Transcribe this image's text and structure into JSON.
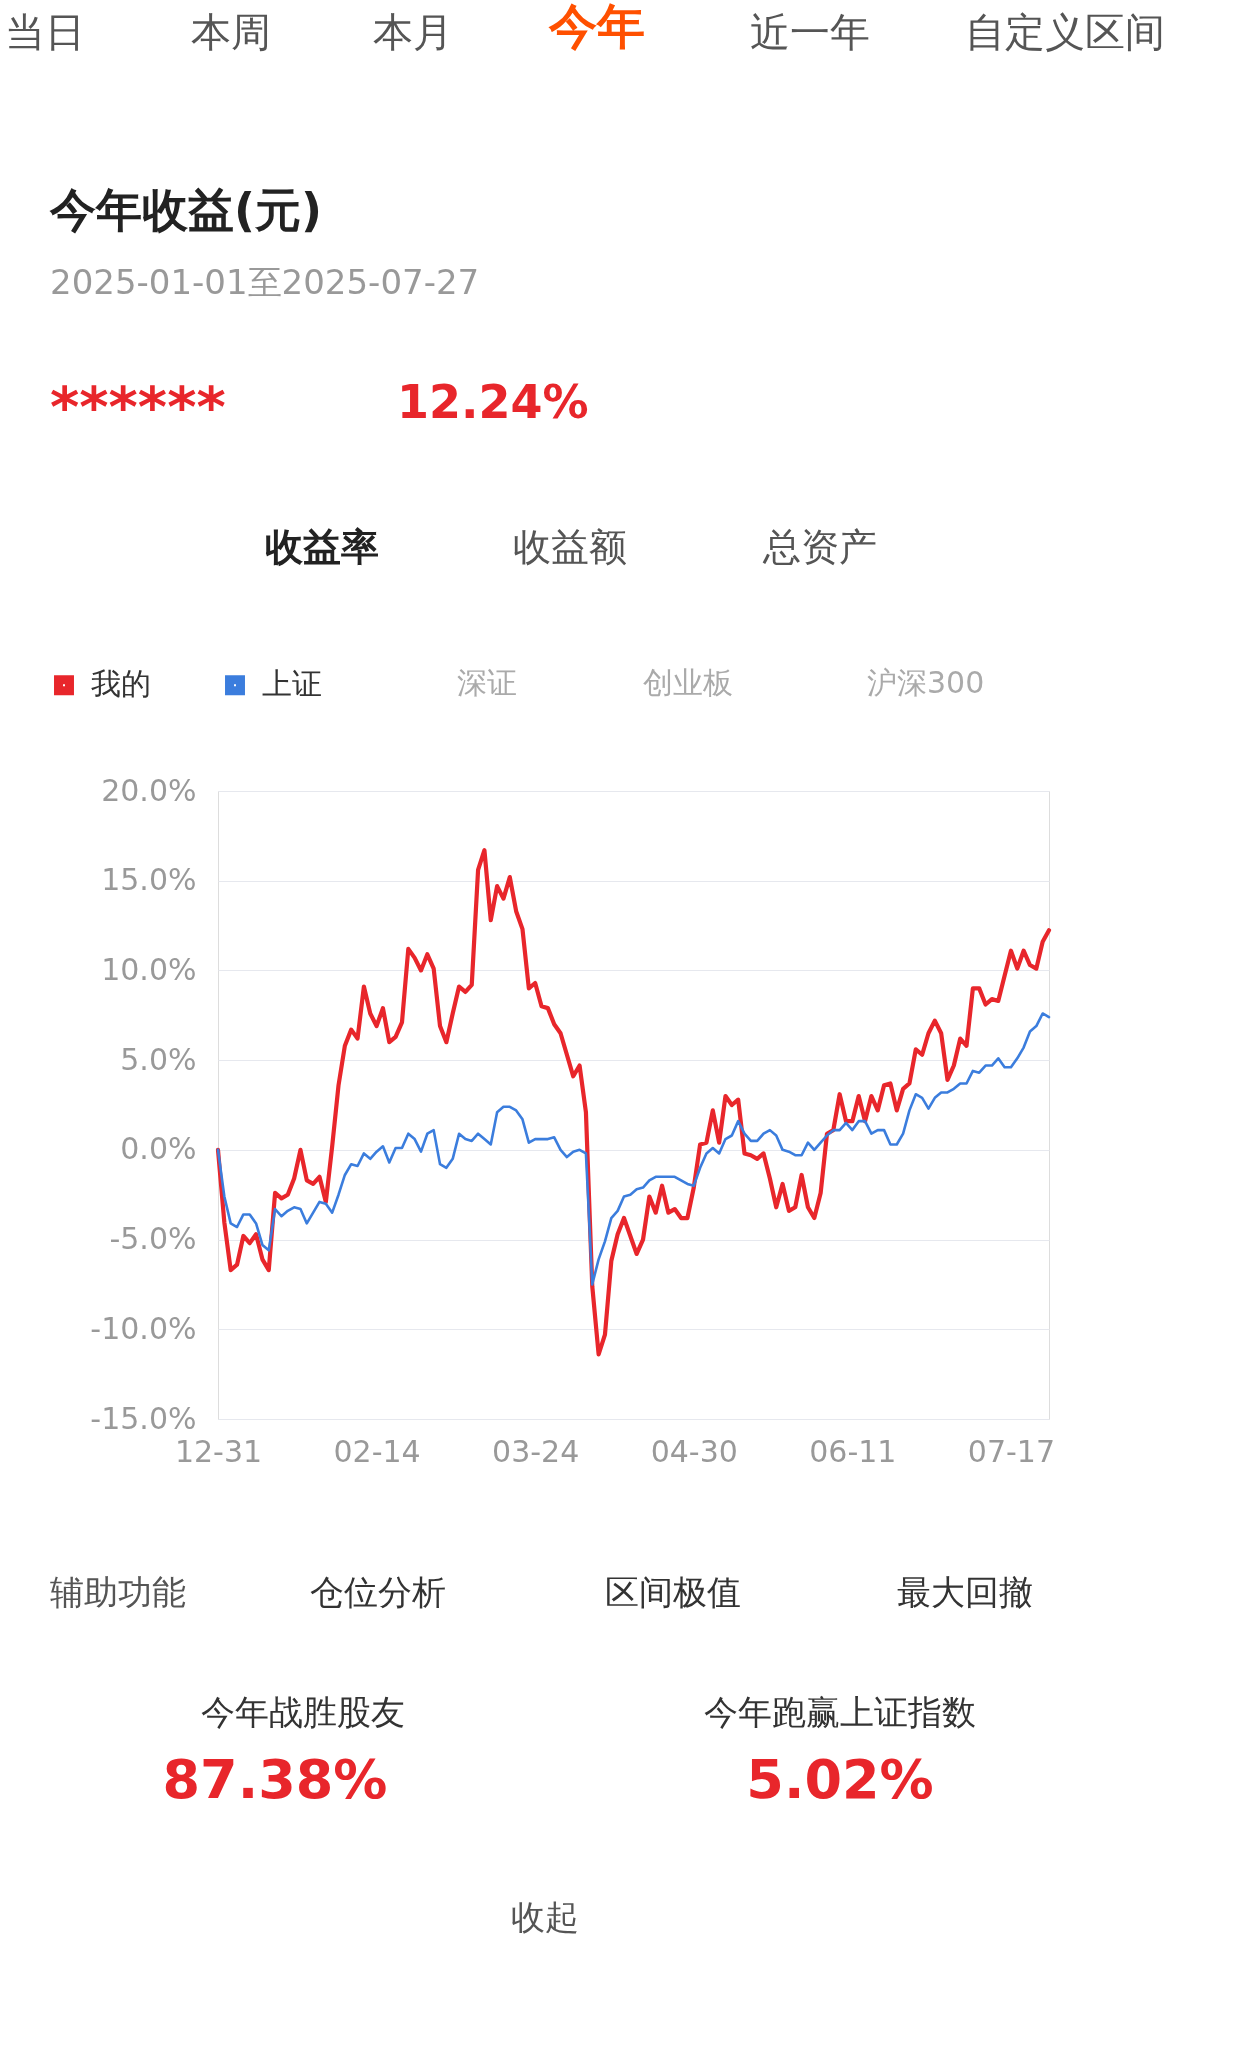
{
  "chart_data": {
    "type": "line",
    "title": "今年收益(元)",
    "subtitle": "2025-01-01至2025-07-27",
    "categories": [
      "12-31",
      null,
      null,
      null,
      null,
      null,
      null,
      null,
      null,
      null,
      null,
      null,
      null,
      null,
      null,
      null,
      null,
      null,
      null,
      null,
      null,
      null,
      null,
      null,
      null,
      "02-14",
      null,
      null,
      null,
      null,
      null,
      null,
      null,
      null,
      null,
      null,
      null,
      null,
      null,
      null,
      null,
      null,
      null,
      null,
      null,
      null,
      null,
      null,
      null,
      null,
      "03-24",
      null,
      null,
      null,
      null,
      null,
      null,
      null,
      null,
      null,
      null,
      null,
      null,
      null,
      null,
      null,
      null,
      null,
      null,
      null,
      null,
      null,
      null,
      null,
      null,
      "04-30",
      null,
      null,
      null,
      null,
      null,
      null,
      null,
      null,
      null,
      null,
      null,
      null,
      null,
      null,
      null,
      null,
      null,
      null,
      null,
      null,
      null,
      null,
      null,
      null,
      "06-11",
      null,
      null,
      null,
      null,
      null,
      null,
      null,
      null,
      null,
      null,
      null,
      null,
      null,
      null,
      null,
      null,
      null,
      null,
      null,
      null,
      null,
      null,
      null,
      null,
      "07-17",
      null,
      null,
      null,
      null,
      null,
      null
    ],
    "ylim": [
      -15,
      20
    ],
    "yticks": [
      {
        "value": -15,
        "label": "-15.0%"
      },
      {
        "value": -10,
        "label": "-10.0%"
      },
      {
        "value": -5,
        "label": "-5.0%"
      },
      {
        "value": 0,
        "label": "0.0%"
      },
      {
        "value": 5,
        "label": "5.0%"
      },
      {
        "value": 10,
        "label": "10.0%"
      },
      {
        "value": 15,
        "label": "15.0%"
      },
      {
        "value": 20,
        "label": "20.0%"
      }
    ],
    "grid": "y",
    "legend": "top left",
    "line_style": "solid",
    "marker": "none",
    "series": [
      {
        "name": "我的",
        "color": "#e8262b",
        "values": [
          0,
          -4.05,
          -6.7,
          -6.4,
          -4.8,
          -5.2,
          -4.7,
          -6.1,
          -6.7,
          -2.4,
          -2.7,
          -2.5,
          -1.6,
          0,
          -1.7,
          -1.9,
          -1.5,
          -2.9,
          0.2,
          3.6,
          5.8,
          6.7,
          6.2,
          9.1,
          7.6,
          6.9,
          7.9,
          6.0,
          6.3,
          7.1,
          11.2,
          10.7,
          10.0,
          10.9,
          10.1,
          6.9,
          6.0,
          7.6,
          9.1,
          8.8,
          9.2,
          15.6,
          16.7,
          12.8,
          14.7,
          14.0,
          15.2,
          13.3,
          12.3,
          9.0,
          9.3,
          8.0,
          7.9,
          7.0,
          6.5,
          5.3,
          4.1,
          4.7,
          2.1,
          -7.6,
          -11.4,
          -10.3,
          -6.2,
          -4.7,
          -3.8,
          -4.8,
          -5.8,
          -5.0,
          -2.6,
          -3.5,
          -2.0,
          -3.5,
          -3.3,
          -3.8,
          -3.8,
          -2.1,
          0.3,
          0.4,
          2.2,
          0.4,
          3.0,
          2.5,
          2.8,
          -0.2,
          -0.3,
          -0.5,
          -0.2,
          -1.6,
          -3.2,
          -1.9,
          -3.4,
          -3.2,
          -1.4,
          -3.2,
          -3.8,
          -2.4,
          0.9,
          1.1,
          3.1,
          1.6,
          1.6,
          3.0,
          1.6,
          3.0,
          2.2,
          3.6,
          3.7,
          2.2,
          3.4,
          3.7,
          5.6,
          5.3,
          6.5,
          7.2,
          6.5,
          3.9,
          4.7,
          6.2,
          5.8,
          9.0,
          9.0,
          8.1,
          8.4,
          8.3,
          9.7,
          11.1,
          10.1,
          11.1,
          10.3,
          10.1,
          11.6,
          12.24
        ]
      },
      {
        "name": "上证",
        "color": "#3b7ddd",
        "values": [
          0,
          -2.6,
          -4.1,
          -4.3,
          -3.6,
          -3.6,
          -4.1,
          -5.3,
          -5.6,
          -3.3,
          -3.7,
          -3.4,
          -3.2,
          -3.3,
          -4.1,
          -3.5,
          -2.9,
          -3.0,
          -3.5,
          -2.5,
          -1.4,
          -0.8,
          -0.9,
          -0.2,
          -0.5,
          -0.1,
          0.2,
          -0.7,
          0.1,
          0.1,
          0.9,
          0.6,
          -0.1,
          0.9,
          1.1,
          -0.8,
          -1.0,
          -0.5,
          0.9,
          0.6,
          0.5,
          0.9,
          0.6,
          0.3,
          2.1,
          2.4,
          2.4,
          2.2,
          1.7,
          0.4,
          0.6,
          0.6,
          0.6,
          0.7,
          0,
          -0.4,
          -0.1,
          0,
          -0.2,
          -7.5,
          -6.1,
          -5.1,
          -3.8,
          -3.4,
          -2.6,
          -2.5,
          -2.2,
          -2.1,
          -1.7,
          -1.5,
          -1.5,
          -1.5,
          -1.5,
          -1.7,
          -1.9,
          -2.0,
          -1.0,
          -0.2,
          0.1,
          -0.2,
          0.6,
          0.8,
          1.6,
          0.9,
          0.5,
          0.5,
          0.9,
          1.1,
          0.8,
          0,
          -0.1,
          -0.3,
          -0.3,
          0.4,
          0,
          0.4,
          0.8,
          1.1,
          1.1,
          1.5,
          1.1,
          1.6,
          1.6,
          0.9,
          1.1,
          1.1,
          0.3,
          0.3,
          0.9,
          2.2,
          3.1,
          2.9,
          2.3,
          2.9,
          3.2,
          3.2,
          3.4,
          3.7,
          3.7,
          4.4,
          4.3,
          4.7,
          4.7,
          5.1,
          4.6,
          4.6,
          5.1,
          5.7,
          6.6,
          6.9,
          7.6,
          7.4
        ]
      }
    ],
    "annotations": [
      "当日",
      "本周",
      "本月",
      "今年",
      "近一年",
      "自定义区间",
      "******",
      "12.24%",
      "收益率",
      "收益额",
      "总资产",
      "深证",
      "创业板",
      "沪深300",
      "辅助功能",
      "仓位分析",
      "区间极值",
      "最大回撤",
      "今年战胜股友",
      "87.38%",
      "今年跑赢上证指数",
      "5.02%",
      "收起"
    ]
  }
}
